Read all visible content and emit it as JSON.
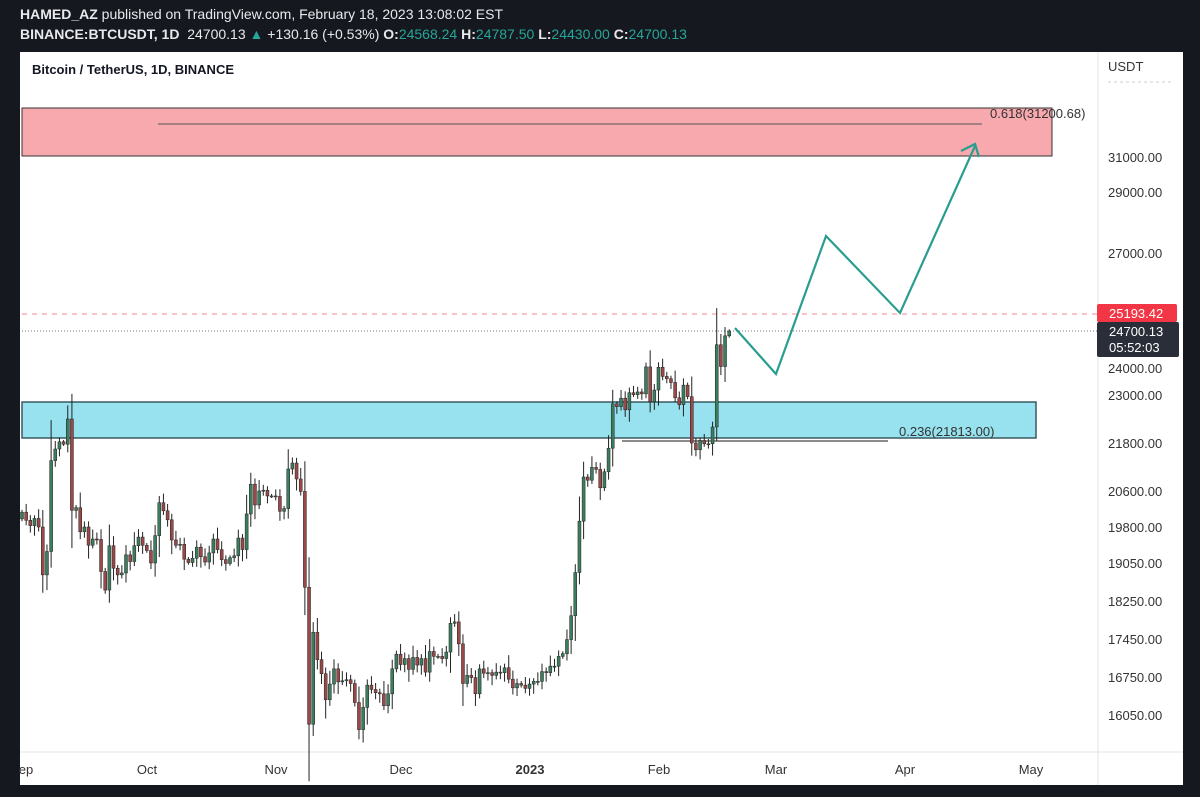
{
  "header": {
    "author": "HAMED_AZ",
    "published": "published on TradingView.com, February 18, 2023 13:08:02 EST",
    "symbol": "BINANCE:BTCUSDT, 1D",
    "last": "24700.13",
    "change_arrow": "▲",
    "change": "+130.16 (+0.53%)",
    "o_label": "O:",
    "o": "24568.24",
    "h_label": "H:",
    "h": "24787.50",
    "l_label": "L:",
    "l": "24430.00",
    "c_label": "C:",
    "c": "24700.13"
  },
  "chart_title": "Bitcoin / TetherUS, 1D, BINANCE",
  "colors": {
    "up": "#3b7d5e",
    "down": "#9a4848",
    "wick": "#222222",
    "resistance_zone": "#f7a9ae",
    "support_zone": "#97e2ee",
    "projection": "#2a9d8f",
    "price_tag_red": "#f23645",
    "price_tag_dark": "#2a2e39"
  },
  "chart_data": {
    "type": "candlestick",
    "title": "Bitcoin / TetherUS, 1D, BINANCE",
    "ylabel": "USDT",
    "start_date": "2022-09-01",
    "interval": "1D",
    "closes": [
      20130,
      19950,
      19830,
      19990,
      19800,
      18800,
      19290,
      21360,
      21650,
      21830,
      21770,
      22400,
      20170,
      20230,
      19700,
      19800,
      19420,
      19550,
      19540,
      18870,
      18480,
      19410,
      18940,
      18800,
      18840,
      19220,
      19080,
      19410,
      19590,
      19420,
      19310,
      19050,
      19620,
      20340,
      20160,
      19960,
      19530,
      19420,
      19440,
      19130,
      19060,
      19150,
      19380,
      19180,
      19070,
      19260,
      19550,
      19330,
      19120,
      19040,
      19160,
      19200,
      19570,
      19330,
      20090,
      20770,
      20290,
      20600,
      20620,
      20490,
      20490,
      20480,
      20150,
      20210,
      21150,
      21300,
      20900,
      20590,
      18540,
      15880,
      17590,
      17070,
      16810,
      16330,
      16620,
      16900,
      16660,
      16680,
      16700,
      16630,
      16280,
      15780,
      16190,
      16600,
      16520,
      16460,
      16440,
      16220,
      16440,
      16900,
      17170,
      16980,
      17090,
      16890,
      17110,
      16970,
      17090,
      16840,
      17220,
      17130,
      17130,
      17090,
      17210,
      17780,
      17810,
      17360,
      16630,
      16780,
      16740,
      16440,
      16900,
      16820,
      16830,
      16780,
      16840,
      16830,
      16920,
      16710,
      16550,
      16630,
      16600,
      16540,
      16620,
      16670,
      16670,
      16850,
      16830,
      16950,
      16950,
      17130,
      17180,
      17440,
      17940,
      18850,
      19930,
      20950,
      20870,
      21190,
      21140,
      20680,
      21080,
      21670,
      22780,
      22710,
      22920,
      22630,
      23060,
      23010,
      23080,
      23030,
      23740,
      22830,
      23130,
      23730,
      23490,
      23430,
      23330,
      22930,
      22760,
      23260,
      22960,
      21800,
      21630,
      21860,
      21780,
      21780,
      22200,
      24330,
      23750,
      24570,
      24700
    ],
    "y_ticks": [
      "31000.00",
      "29000.00",
      "27000.00",
      "24000.00",
      "23000.00",
      "21800.00",
      "20600.00",
      "19800.00",
      "19050.00",
      "18250.00",
      "17450.00",
      "16750.00",
      "16050.00"
    ],
    "x_ticks": [
      "ep",
      "Oct",
      "Nov",
      "Dec",
      "2023",
      "Feb",
      "Mar",
      "Apr",
      "May"
    ],
    "price_tags": [
      {
        "value": "25193.42",
        "kind": "high-line"
      },
      {
        "value": "24700.13",
        "kind": "last"
      }
    ],
    "countdown": "05:52:03",
    "fib_levels": [
      {
        "label": "0.618(31200.68)",
        "price": 31200.68
      },
      {
        "label": "0.236(21813.00)",
        "price": 21813.0
      }
    ],
    "projection_path": [
      24700,
      23400,
      27500,
      25200,
      30500
    ]
  }
}
